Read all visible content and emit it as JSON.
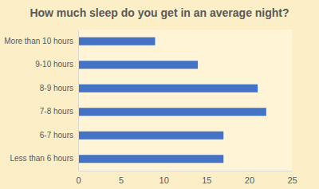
{
  "chart_data": {
    "type": "bar",
    "orientation": "horizontal",
    "title": "How much sleep do you get in an average night?",
    "categories": [
      "More than 10 hours",
      "9-10 hours",
      "8-9 hours",
      "7-8 hours",
      "6-7 hours",
      "Less than 6 hours"
    ],
    "values": [
      9,
      14,
      21,
      22,
      17,
      17
    ],
    "color": "#4472c4",
    "xlim": [
      0,
      25
    ],
    "xticks": [
      0,
      5,
      10,
      15,
      20,
      25
    ],
    "grid": false
  }
}
